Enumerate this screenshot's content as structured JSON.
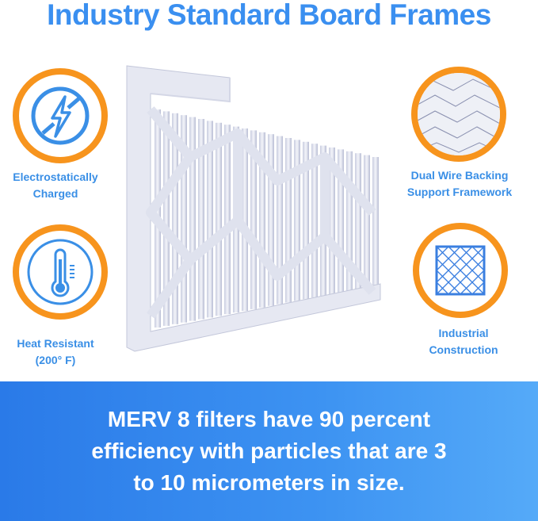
{
  "title": "Industry Standard Board Frames",
  "features": [
    {
      "icon": "no-static-lightning-icon",
      "line1": "Electrostatically",
      "line2": "Charged"
    },
    {
      "icon": "thermometer-icon",
      "line1": "Heat Resistant",
      "line2": "(200° F)"
    },
    {
      "icon": "wire-mesh-icon",
      "line1": "Dual Wire Backing",
      "line2": "Support Framework"
    },
    {
      "icon": "grid-frame-icon",
      "line1": "Industrial",
      "line2": "Construction"
    }
  ],
  "banner": {
    "line1": "MERV 8 filters have 90 percent",
    "line2": "efficiency with particles that are 3",
    "line3": "to 10 micrometers in size."
  },
  "colors": {
    "accent_blue": "#3a8ff0",
    "ring_orange": "#f7941d",
    "banner_blue": "#2a7ae8"
  }
}
